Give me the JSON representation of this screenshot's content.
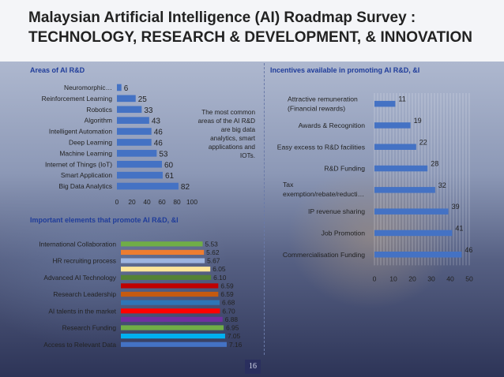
{
  "slide": {
    "title_line1": "Malaysian Artificial Intelligence (AI) Roadmap Survey :",
    "title_line2": "TECHNOLOGY, RESEARCH & DEVELOPMENT, & INNOVATION",
    "annotation": "The most common areas of the AI R&D are big data analytics, smart applications and IOTs.",
    "page_number": "16"
  },
  "chart_data": [
    {
      "type": "bar",
      "orientation": "horizontal",
      "title": "Areas of AI R&D",
      "categories": [
        "Neuromorphic…",
        "Reinforcement Learning",
        "Robotics",
        "Algorithm",
        "Intelligent Automation",
        "Deep Learning",
        "Machine Learning",
        "Internet of Things (IoT)",
        "Smart Application",
        "Big Data Analytics"
      ],
      "values": [
        6,
        25,
        33,
        43,
        46,
        46,
        53,
        60,
        61,
        82
      ],
      "xlim": [
        0,
        100
      ],
      "xticks": [
        0,
        20,
        40,
        60,
        80,
        100
      ],
      "grid": false,
      "bar_color": "#4472c4"
    },
    {
      "type": "bar",
      "orientation": "horizontal",
      "title": "Incentives available in promoting AI R&D, &I",
      "categories": [
        "Attractive remuneration (Financial rewards)",
        "Awards & Recognition",
        "Easy excess to R&D facilities",
        "R&D Funding",
        "Tax exemption/rebate/reducti…",
        "IP revenue sharing",
        "Job Promotion",
        "Commercialisation Funding"
      ],
      "values": [
        11,
        19,
        22,
        28,
        32,
        39,
        41,
        46
      ],
      "xlim": [
        0,
        50
      ],
      "xticks": [
        0,
        10,
        20,
        30,
        40,
        50
      ],
      "grid": true,
      "bar_color": "#4472c4"
    },
    {
      "type": "bar",
      "orientation": "horizontal",
      "title": "Important elements that promote AI R&D, &I",
      "categories": [
        "International Collaboration",
        "",
        "HR recruiting process",
        "",
        "Advanced AI Technology",
        "",
        "Research Leadership",
        "",
        "AI talents in the market",
        "",
        "Research Funding",
        "",
        "Access to Relevant Data"
      ],
      "values": [
        5.53,
        5.62,
        5.67,
        6.05,
        6.1,
        6.59,
        6.59,
        6.68,
        6.7,
        6.88,
        6.95,
        7.05,
        7.16
      ],
      "value_labels": [
        "5.53",
        "5.62",
        "5.67",
        "6.05",
        "6.10",
        "6.59",
        "6.59",
        "6.68",
        "6.70",
        "6.88",
        "6.95",
        "7.05",
        "7.16"
      ],
      "bar_colors": [
        "#70ad47",
        "#ed7d31",
        "#9db4e0",
        "#ffe699",
        "#548235",
        "#c00000",
        "#c55a11",
        "#2e75b6",
        "#ff0000",
        "#7030a0",
        "#70ad47",
        "#00b0f0",
        "#4472c4"
      ],
      "grid": false
    }
  ]
}
